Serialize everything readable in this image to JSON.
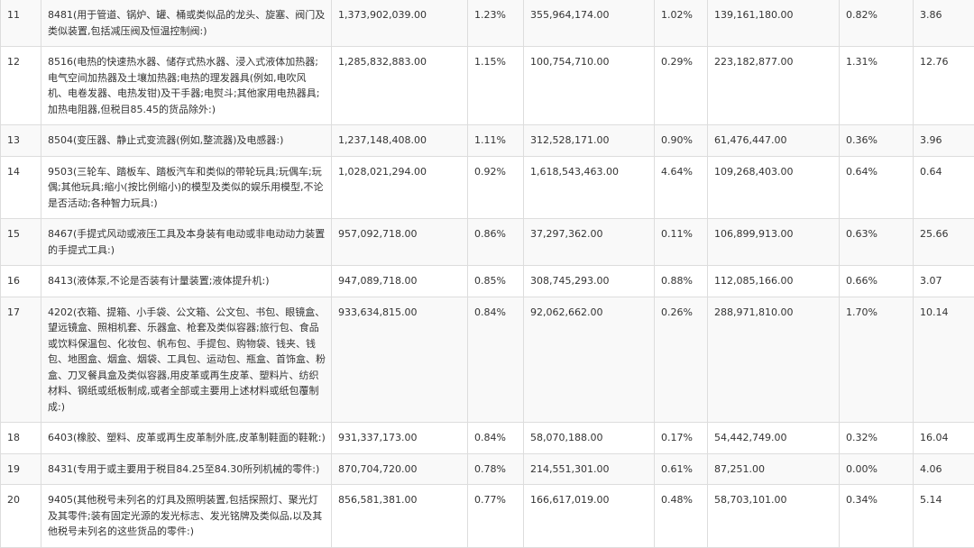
{
  "rows": [
    {
      "idx": "11",
      "name": "8481(用于管道、锅炉、罐、桶或类似品的龙头、旋塞、阀门及类似装置,包括减压阀及恒温控制阀:)",
      "v1": "1,373,902,039.00",
      "p1": "1.23%",
      "v2": "355,964,174.00",
      "p2": "1.02%",
      "v3": "139,161,180.00",
      "p3": "0.82%",
      "r": "3.86"
    },
    {
      "idx": "12",
      "name": "8516(电热的快速热水器、储存式热水器、浸入式液体加热器;电气空间加热器及土壤加热器;电热的理发器具(例如,电吹风机、电卷发器、电热发钳)及干手器;电熨斗;其他家用电热器具;加热电阻器,但税目85.45的货品除外:)",
      "v1": "1,285,832,883.00",
      "p1": "1.15%",
      "v2": "100,754,710.00",
      "p2": "0.29%",
      "v3": "223,182,877.00",
      "p3": "1.31%",
      "r": "12.76"
    },
    {
      "idx": "13",
      "name": "8504(变压器、静止式变流器(例如,整流器)及电感器:)",
      "v1": "1,237,148,408.00",
      "p1": "1.11%",
      "v2": "312,528,171.00",
      "p2": "0.90%",
      "v3": "61,476,447.00",
      "p3": "0.36%",
      "r": "3.96"
    },
    {
      "idx": "14",
      "name": "9503(三轮车、踏板车、踏板汽车和类似的带轮玩具;玩偶车;玩偶;其他玩具;缩小(按比例缩小)的模型及类似的娱乐用模型,不论是否活动;各种智力玩具:)",
      "v1": "1,028,021,294.00",
      "p1": "0.92%",
      "v2": "1,618,543,463.00",
      "p2": "4.64%",
      "v3": "109,268,403.00",
      "p3": "0.64%",
      "r": "0.64"
    },
    {
      "idx": "15",
      "name": "8467(手提式风动或液压工具及本身装有电动或非电动动力装置的手提式工具:)",
      "v1": "957,092,718.00",
      "p1": "0.86%",
      "v2": "37,297,362.00",
      "p2": "0.11%",
      "v3": "106,899,913.00",
      "p3": "0.63%",
      "r": "25.66"
    },
    {
      "idx": "16",
      "name": "8413(液体泵,不论是否装有计量装置;液体提升机:)",
      "v1": "947,089,718.00",
      "p1": "0.85%",
      "v2": "308,745,293.00",
      "p2": "0.88%",
      "v3": "112,085,166.00",
      "p3": "0.66%",
      "r": "3.07"
    },
    {
      "idx": "17",
      "name": "4202(衣箱、提箱、小手袋、公文箱、公文包、书包、眼镜盒、望远镜盒、照相机套、乐器盒、枪套及类似容器;旅行包、食品或饮料保温包、化妆包、帆布包、手提包、购物袋、钱夹、钱包、地图盒、烟盒、烟袋、工具包、运动包、瓶盒、首饰盒、粉盒、刀叉餐具盒及类似容器,用皮革或再生皮革、塑料片、纺织材料、钢纸或纸板制成,或者全部或主要用上述材料或纸包覆制成:)",
      "v1": "933,634,815.00",
      "p1": "0.84%",
      "v2": "92,062,662.00",
      "p2": "0.26%",
      "v3": "288,971,810.00",
      "p3": "1.70%",
      "r": "10.14"
    },
    {
      "idx": "18",
      "name": "6403(橡胶、塑料、皮革或再生皮革制外底,皮革制鞋面的鞋靴:)",
      "v1": "931,337,173.00",
      "p1": "0.84%",
      "v2": "58,070,188.00",
      "p2": "0.17%",
      "v3": "54,442,749.00",
      "p3": "0.32%",
      "r": "16.04"
    },
    {
      "idx": "19",
      "name": "8431(专用于或主要用于税目84.25至84.30所列机械的零件:)",
      "v1": "870,704,720.00",
      "p1": "0.78%",
      "v2": "214,551,301.00",
      "p2": "0.61%",
      "v3": "87,251.00",
      "p3": "0.00%",
      "r": "4.06"
    },
    {
      "idx": "20",
      "name": "9405(其他税号未列名的灯具及照明装置,包括探照灯、聚光灯及其零件;装有固定光源的发光标志、发光铭牌及类似品,以及其他税号未列名的这些货品的零件:)",
      "v1": "856,581,381.00",
      "p1": "0.77%",
      "v2": "166,617,019.00",
      "p2": "0.48%",
      "v3": "58,703,101.00",
      "p3": "0.34%",
      "r": "5.14"
    }
  ]
}
